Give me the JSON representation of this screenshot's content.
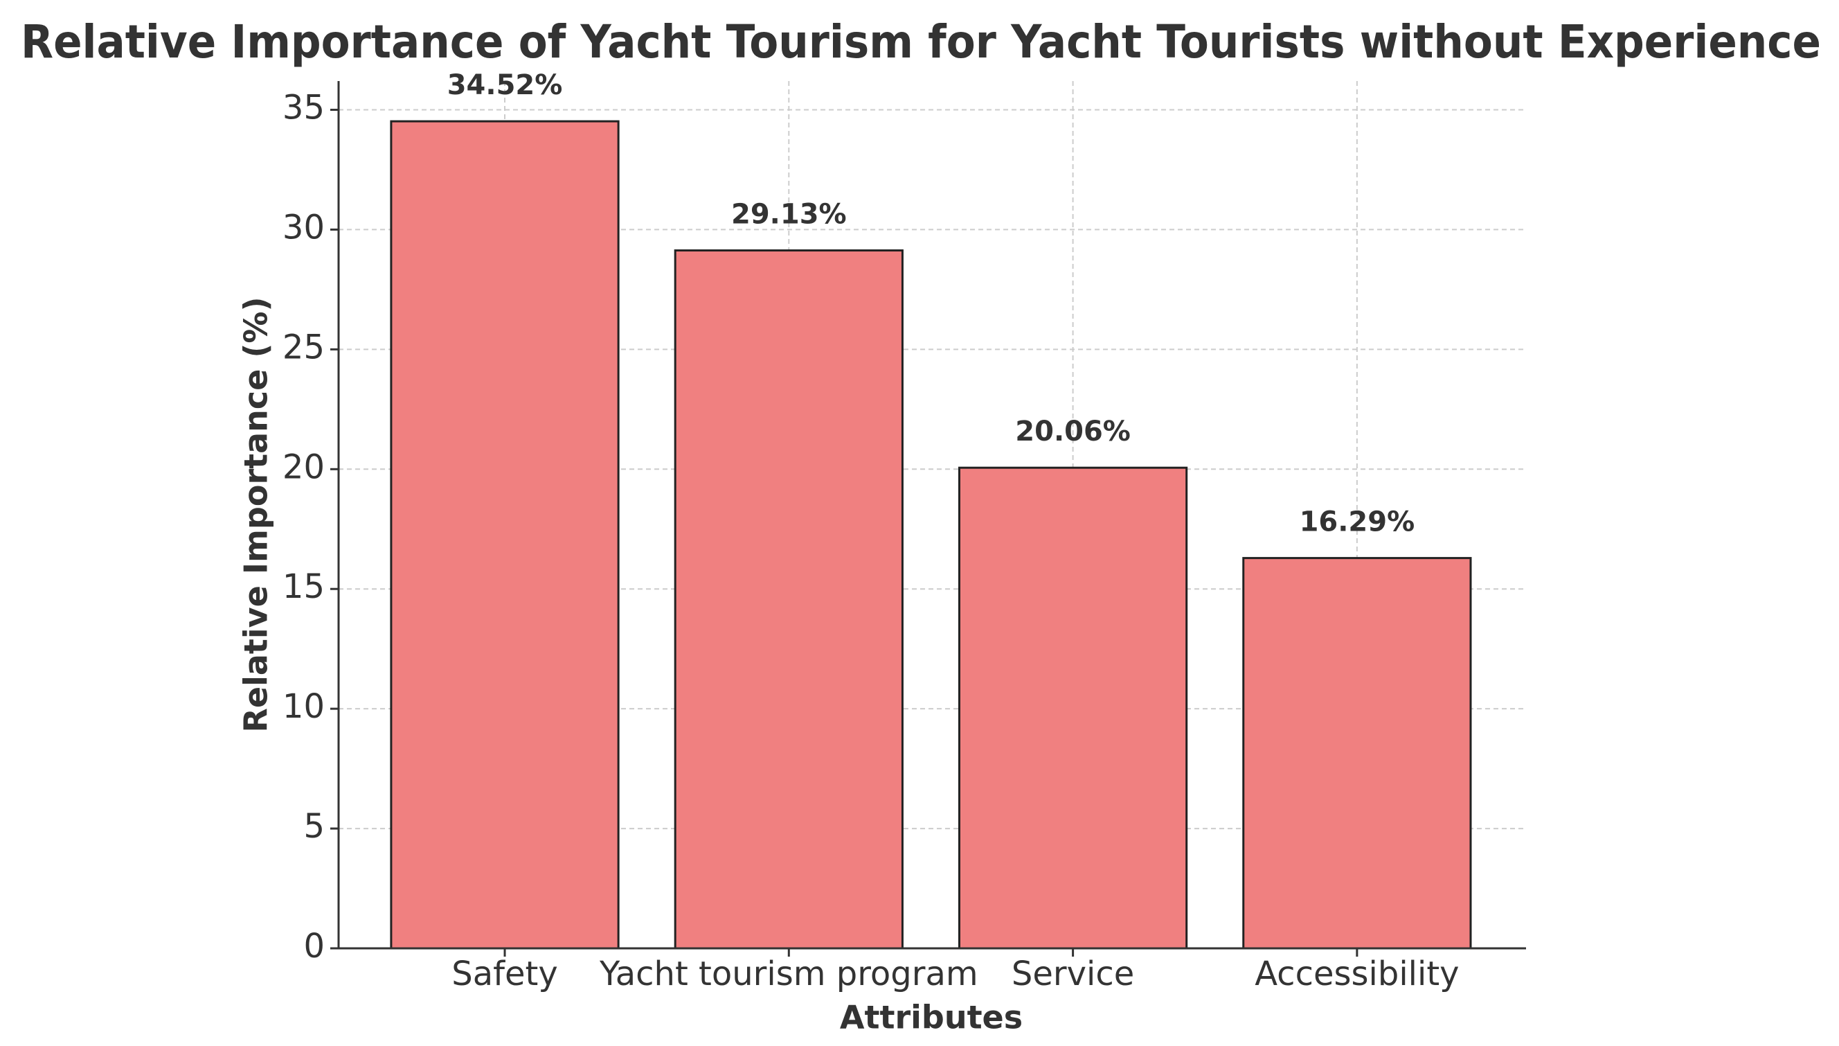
{
  "chart_data": {
    "type": "bar",
    "title": "Relative Importance of Yacht Tourism for Yacht Tourists without Experience",
    "x_label": "Attributes",
    "y_label": "Relative Importance (%)",
    "categories": [
      "Safety",
      "Yacht tourism program",
      "Service",
      "Accessibility"
    ],
    "values": [
      34.52,
      29.13,
      20.06,
      16.29
    ],
    "value_labels": [
      "34.52%",
      "29.13%",
      "20.06%",
      "16.29%"
    ],
    "color": "#f08080",
    "edge_color": "#222222",
    "ylim": [
      0,
      36.2
    ],
    "yticks": [
      0,
      5,
      10,
      15,
      20,
      25,
      30,
      35
    ],
    "grid": true
  }
}
